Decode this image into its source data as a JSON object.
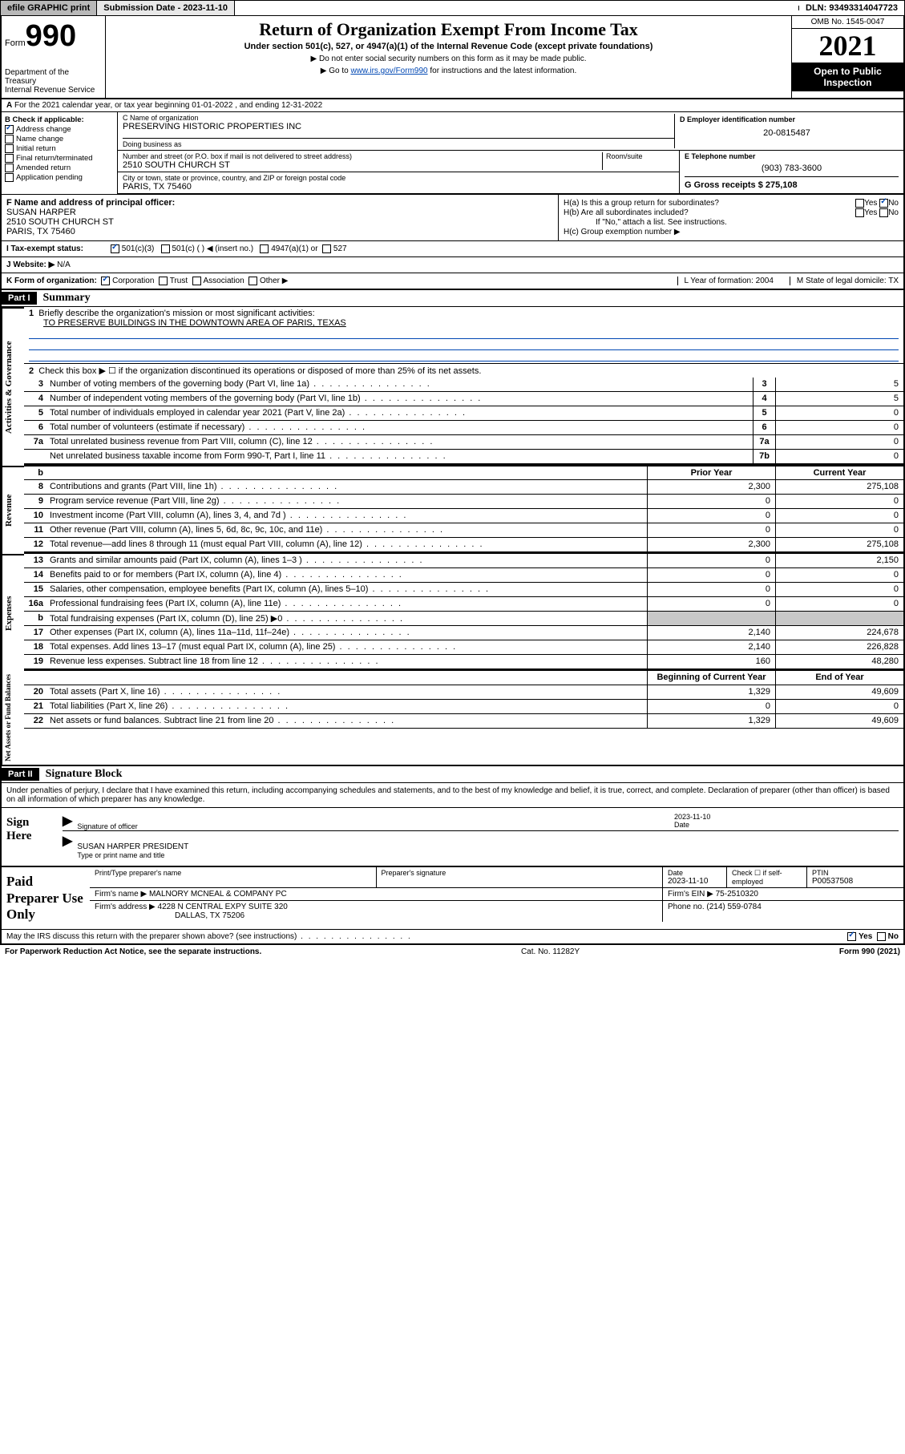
{
  "top": {
    "efile": "efile GRAPHIC print",
    "submission_label": "Submission Date - 2023-11-10",
    "dln": "DLN: 93493314047723"
  },
  "header": {
    "form_prefix": "Form",
    "form_num": "990",
    "title": "Return of Organization Exempt From Income Tax",
    "sub": "Under section 501(c), 527, or 4947(a)(1) of the Internal Revenue Code (except private foundations)",
    "note1": "▶ Do not enter social security numbers on this form as it may be made public.",
    "note2_pre": "▶ Go to ",
    "note2_link": "www.irs.gov/Form990",
    "note2_post": " for instructions and the latest information.",
    "dept": "Department of the Treasury\nInternal Revenue Service",
    "omb": "OMB No. 1545-0047",
    "year": "2021",
    "open": "Open to Public Inspection"
  },
  "section_a": "For the 2021 calendar year, or tax year beginning 01-01-2022   , and ending 12-31-2022",
  "section_b": {
    "label": "B Check if applicable:",
    "items": [
      "Address change",
      "Name change",
      "Initial return",
      "Final return/terminated",
      "Amended return",
      "Application pending"
    ],
    "checked_idx": 0
  },
  "section_c": {
    "name_label": "C Name of organization",
    "name": "PRESERVING HISTORIC PROPERTIES INC",
    "dba_label": "Doing business as",
    "street_label": "Number and street (or P.O. box if mail is not delivered to street address)",
    "room_label": "Room/suite",
    "street": "2510 SOUTH CHURCH ST",
    "city_label": "City or town, state or province, country, and ZIP or foreign postal code",
    "city": "PARIS, TX  75460"
  },
  "section_d": {
    "label": "D Employer identification number",
    "ein": "20-0815487"
  },
  "section_e": {
    "label": "E Telephone number",
    "phone": "(903) 783-3600"
  },
  "section_g": {
    "label": "G Gross receipts $",
    "val": "275,108"
  },
  "section_f": {
    "label": "F  Name and address of principal officer:",
    "name": "SUSAN HARPER",
    "addr1": "2510 SOUTH CHURCH ST",
    "addr2": "PARIS, TX  75460"
  },
  "section_h": {
    "a": "H(a)  Is this a group return for subordinates?",
    "b": "H(b)  Are all subordinates included?",
    "b_note": "If \"No,\" attach a list. See instructions.",
    "c": "H(c)  Group exemption number ▶",
    "yes": "Yes",
    "no": "No"
  },
  "tax_status": {
    "label": "I   Tax-exempt status:",
    "opts": [
      "501(c)(3)",
      "501(c) (  ) ◀ (insert no.)",
      "4947(a)(1) or",
      "527"
    ]
  },
  "website": {
    "label": "J   Website: ▶",
    "val": "N/A"
  },
  "k_org": {
    "label": "K Form of organization:",
    "opts": [
      "Corporation",
      "Trust",
      "Association",
      "Other ▶"
    ],
    "l": "L Year of formation: 2004",
    "m": "M State of legal domicile: TX"
  },
  "part1": {
    "label": "Part I",
    "title": "Summary",
    "line1": "Briefly describe the organization's mission or most significant activities:",
    "mission": "TO PRESERVE BUILDINGS IN THE DOWNTOWN AREA OF PARIS, TEXAS",
    "line2": "Check this box ▶ ☐  if the organization discontinued its operations or disposed of more than 25% of its net assets.",
    "gov_rows": [
      {
        "n": "3",
        "t": "Number of voting members of the governing body (Part VI, line 1a)",
        "box": "3",
        "v": "5"
      },
      {
        "n": "4",
        "t": "Number of independent voting members of the governing body (Part VI, line 1b)",
        "box": "4",
        "v": "5"
      },
      {
        "n": "5",
        "t": "Total number of individuals employed in calendar year 2021 (Part V, line 2a)",
        "box": "5",
        "v": "0"
      },
      {
        "n": "6",
        "t": "Total number of volunteers (estimate if necessary)",
        "box": "6",
        "v": "0"
      },
      {
        "n": "7a",
        "t": "Total unrelated business revenue from Part VIII, column (C), line 12",
        "box": "7a",
        "v": "0"
      },
      {
        "n": "",
        "t": "Net unrelated business taxable income from Form 990-T, Part I, line 11",
        "box": "7b",
        "v": "0"
      }
    ],
    "col_hdr_prior": "Prior Year",
    "col_hdr_curr": "Current Year",
    "rev_rows": [
      {
        "n": "8",
        "t": "Contributions and grants (Part VIII, line 1h)",
        "p": "2,300",
        "c": "275,108"
      },
      {
        "n": "9",
        "t": "Program service revenue (Part VIII, line 2g)",
        "p": "0",
        "c": "0"
      },
      {
        "n": "10",
        "t": "Investment income (Part VIII, column (A), lines 3, 4, and 7d )",
        "p": "0",
        "c": "0"
      },
      {
        "n": "11",
        "t": "Other revenue (Part VIII, column (A), lines 5, 6d, 8c, 9c, 10c, and 11e)",
        "p": "0",
        "c": "0"
      },
      {
        "n": "12",
        "t": "Total revenue—add lines 8 through 11 (must equal Part VIII, column (A), line 12)",
        "p": "2,300",
        "c": "275,108"
      }
    ],
    "exp_rows": [
      {
        "n": "13",
        "t": "Grants and similar amounts paid (Part IX, column (A), lines 1–3 )",
        "p": "0",
        "c": "2,150"
      },
      {
        "n": "14",
        "t": "Benefits paid to or for members (Part IX, column (A), line 4)",
        "p": "0",
        "c": "0"
      },
      {
        "n": "15",
        "t": "Salaries, other compensation, employee benefits (Part IX, column (A), lines 5–10)",
        "p": "0",
        "c": "0"
      },
      {
        "n": "16a",
        "t": "Professional fundraising fees (Part IX, column (A), line 11e)",
        "p": "0",
        "c": "0"
      },
      {
        "n": "b",
        "t": "Total fundraising expenses (Part IX, column (D), line 25) ▶0",
        "p": "",
        "c": "",
        "shade": true
      },
      {
        "n": "17",
        "t": "Other expenses (Part IX, column (A), lines 11a–11d, 11f–24e)",
        "p": "2,140",
        "c": "224,678"
      },
      {
        "n": "18",
        "t": "Total expenses. Add lines 13–17 (must equal Part IX, column (A), line 25)",
        "p": "2,140",
        "c": "226,828"
      },
      {
        "n": "19",
        "t": "Revenue less expenses. Subtract line 18 from line 12",
        "p": "160",
        "c": "48,280"
      }
    ],
    "na_hdr_beg": "Beginning of Current Year",
    "na_hdr_end": "End of Year",
    "na_rows": [
      {
        "n": "20",
        "t": "Total assets (Part X, line 16)",
        "p": "1,329",
        "c": "49,609"
      },
      {
        "n": "21",
        "t": "Total liabilities (Part X, line 26)",
        "p": "0",
        "c": "0"
      },
      {
        "n": "22",
        "t": "Net assets or fund balances. Subtract line 21 from line 20",
        "p": "1,329",
        "c": "49,609"
      }
    ]
  },
  "part2": {
    "label": "Part II",
    "title": "Signature Block",
    "intro": "Under penalties of perjury, I declare that I have examined this return, including accompanying schedules and statements, and to the best of my knowledge and belief, it is true, correct, and complete. Declaration of preparer (other than officer) is based on all information of which preparer has any knowledge.",
    "sign_here": "Sign Here",
    "sig_officer": "Signature of officer",
    "sig_date": "2023-11-10",
    "date_label": "Date",
    "officer_name": "SUSAN HARPER  PRESIDENT",
    "type_label": "Type or print name and title"
  },
  "preparer": {
    "label": "Paid Preparer Use Only",
    "hdr": [
      "Print/Type preparer's name",
      "Preparer's signature",
      "Date",
      "Check ☐ if self-employed",
      "PTIN"
    ],
    "date": "2023-11-10",
    "ptin": "P00537508",
    "firm_name_label": "Firm's name    ▶",
    "firm_name": "MALNORY MCNEAL & COMPANY PC",
    "firm_ein_label": "Firm's EIN ▶",
    "firm_ein": "75-2510320",
    "firm_addr_label": "Firm's address ▶",
    "firm_addr1": "4228 N CENTRAL EXPY SUITE 320",
    "firm_addr2": "DALLAS, TX  75206",
    "phone_label": "Phone no.",
    "phone": "(214) 559-0784"
  },
  "may_irs": "May the IRS discuss this return with the preparer shown above? (see instructions)",
  "footer": {
    "left": "For Paperwork Reduction Act Notice, see the separate instructions.",
    "mid": "Cat. No. 11282Y",
    "right": "Form 990 (2021)"
  }
}
